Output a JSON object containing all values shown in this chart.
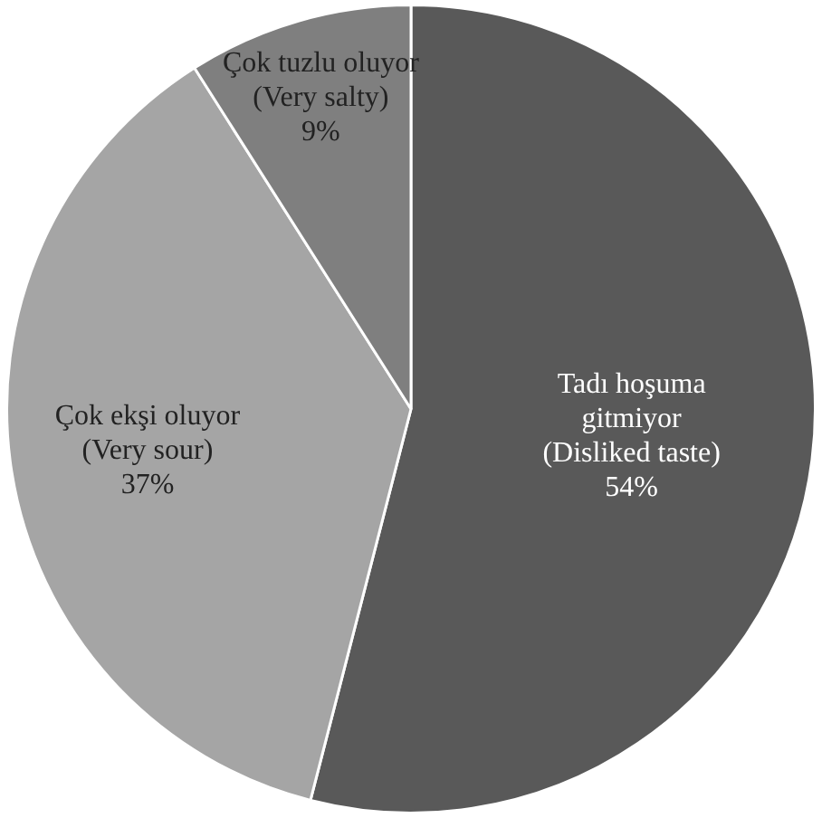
{
  "chart_data": {
    "type": "pie",
    "categories": [
      "Tadı hoşuma gitmiyor (Disliked taste)",
      "Çok ekşi oluyor (Very sour)",
      "Çok tuzlu oluyor (Very salty)"
    ],
    "values": [
      54,
      37,
      9
    ],
    "colors": [
      "#595959",
      "#a5a5a5",
      "#7f7f7f"
    ],
    "value_labels": [
      "54%",
      "37%",
      "9%"
    ],
    "legend": false
  }
}
